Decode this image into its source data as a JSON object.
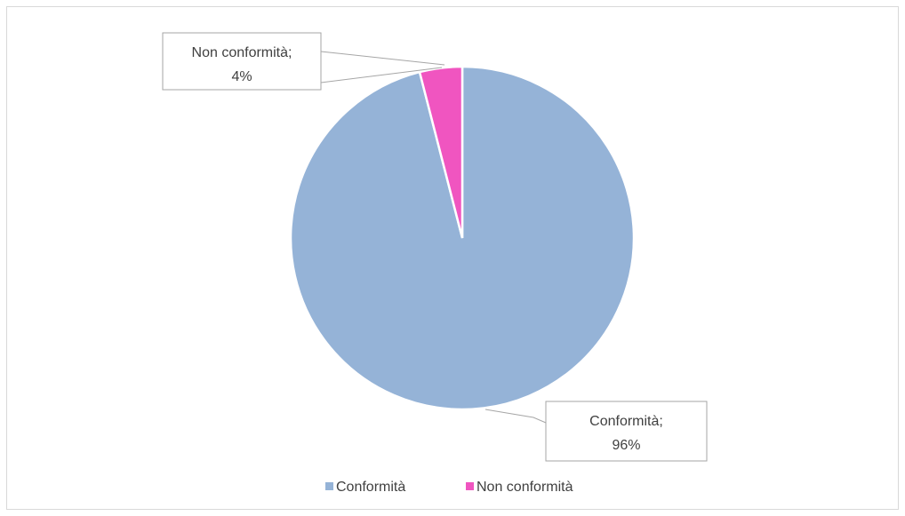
{
  "chart_data": {
    "type": "pie",
    "title": "",
    "categories": [
      "Conformità",
      "Non conformità"
    ],
    "values": [
      96,
      4
    ],
    "unit": "%",
    "colors": [
      "#95b3d7",
      "#f055c0"
    ],
    "data_labels": [
      {
        "line1": "Conformità;",
        "line2": "96%"
      },
      {
        "line1": "Non conformità;",
        "line2": "4%"
      }
    ],
    "legend_position": "bottom",
    "start_angle": "top, clockwise"
  },
  "legend": {
    "items": [
      {
        "label": "Conformità",
        "color": "#95b3d7"
      },
      {
        "label": "Non conformità",
        "color": "#f055c0"
      }
    ]
  }
}
